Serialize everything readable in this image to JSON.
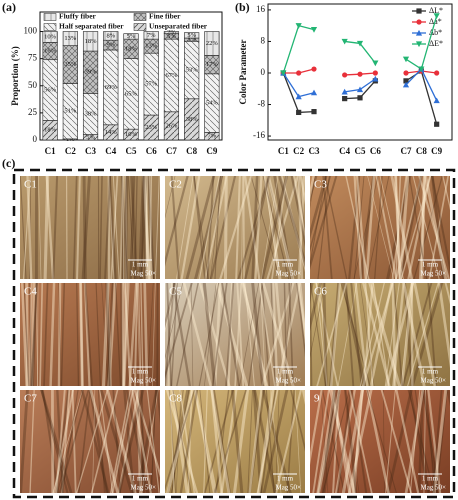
{
  "chart_data": [
    {
      "type": "bar",
      "stacked": true,
      "panel_label": "(a)",
      "ylabel": "Proportion (%)",
      "categories": [
        "C1",
        "C2",
        "C3",
        "C4",
        "C5",
        "C6",
        "C7",
        "C8",
        "C9"
      ],
      "ylim": [
        0,
        118
      ],
      "yticks": [
        0,
        25,
        50,
        75,
        100
      ],
      "series": [
        {
          "name": "Unseparated fiber",
          "color": "#d9d9d9",
          "values": [
            18,
            1,
            5,
            14,
            10,
            23,
            26,
            38,
            7
          ],
          "value_labels": [
            "18%",
            "1%",
            "5%",
            "14%",
            "10%",
            "23%",
            "26%",
            "38%",
            "7%"
          ]
        },
        {
          "name": "Half separated fiber",
          "color": "#f2f2f2",
          "values": [
            56,
            51,
            38,
            69,
            65,
            57,
            67,
            53,
            54
          ],
          "value_labels": [
            "56%",
            "51%",
            "38%",
            "69%",
            "65%",
            "57%",
            "67%",
            "53%",
            "54%"
          ]
        },
        {
          "name": "Fine fiber",
          "color": "#bfbfbf",
          "values": [
            16,
            35,
            39,
            9,
            18,
            13,
            5,
            3,
            17
          ],
          "value_labels": [
            "16%",
            "35%",
            "39%",
            "9%",
            "18%",
            "13%",
            "5%",
            "3%",
            "17%"
          ]
        },
        {
          "name": "Fluffy fiber",
          "color": "#e8e8e8",
          "values": [
            10,
            13,
            18,
            8,
            5,
            7,
            2,
            5,
            22
          ],
          "value_labels": [
            "10%",
            "13%",
            "18%",
            "8%",
            "5%",
            "7%",
            "2%",
            "5%",
            "22%"
          ]
        }
      ]
    },
    {
      "type": "line",
      "panel_label": "(b)",
      "ylabel": "Color Parameter",
      "categories": [
        "C1",
        "C2",
        "C3",
        null,
        "C4",
        "C5",
        "C6",
        null,
        "C7",
        "C8",
        "C9"
      ],
      "ylim": [
        -17,
        17.5
      ],
      "yticks": [
        -16,
        -8,
        0,
        8,
        16
      ],
      "series": [
        {
          "name": "ΔL*",
          "color": "#333333",
          "marker": "square",
          "values": [
            0,
            -10,
            -9.8,
            null,
            -6.5,
            -6.3,
            -2,
            null,
            -2,
            0.5,
            -13
          ]
        },
        {
          "name": "Δa*",
          "color": "#e8303a",
          "marker": "circle",
          "values": [
            0,
            0,
            1,
            null,
            -0.5,
            -0.3,
            0,
            null,
            0,
            0.5,
            0
          ]
        },
        {
          "name": "Δb*",
          "color": "#2f6fd6",
          "marker": "triangle",
          "values": [
            0,
            -6,
            -5,
            null,
            -4.8,
            -4.2,
            -1.5,
            null,
            -3,
            1,
            -7
          ]
        },
        {
          "name": "ΔE*",
          "color": "#22b573",
          "marker": "down-triangle",
          "values": [
            0,
            12,
            11,
            null,
            8,
            7.5,
            2.5,
            null,
            3.5,
            1,
            14.5
          ]
        }
      ]
    }
  ],
  "micrographs": {
    "panel_label": "(c)",
    "images": [
      {
        "label": "C1",
        "scale": "1 mm",
        "mag": "Mag 50×"
      },
      {
        "label": "C2",
        "scale": "1 mm",
        "mag": "Mag 50×"
      },
      {
        "label": "C3",
        "scale": "1 mm",
        "mag": "Mag 50×"
      },
      {
        "label": "C4",
        "scale": "1 mm",
        "mag": "Mag 50×"
      },
      {
        "label": "C5",
        "scale": "1 mm",
        "mag": "Mag 50×"
      },
      {
        "label": "C6",
        "scale": "1 mm",
        "mag": "Mag 50×"
      },
      {
        "label": "C7",
        "scale": "1 mm",
        "mag": "Mag 50×"
      },
      {
        "label": "C8",
        "scale": "1 mm",
        "mag": "Mag 50×"
      },
      {
        "label": "9",
        "scale": "1 mm",
        "mag": "Mag 50×"
      }
    ]
  }
}
